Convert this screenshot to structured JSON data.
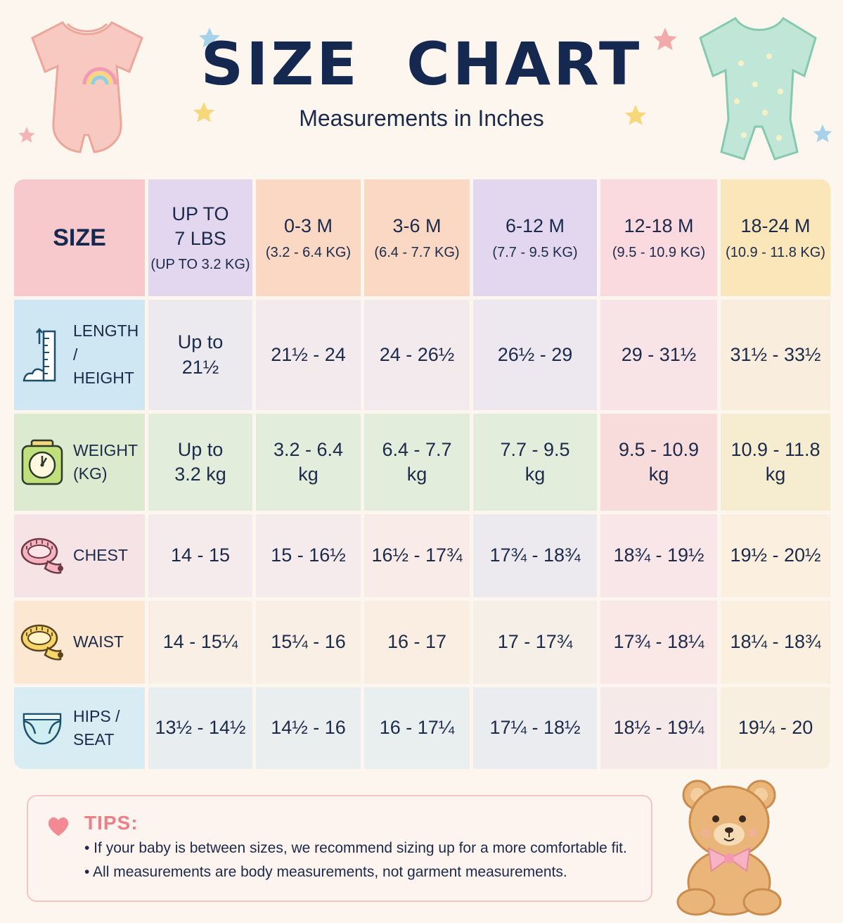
{
  "header": {
    "title": "SIZE  CHART",
    "subtitle": "Measurements in Inches"
  },
  "table": {
    "corner_label": "SIZE",
    "columns": [
      {
        "main": "UP TO\n7 LBS",
        "sub": "(UP TO 3.2 KG)",
        "color": "#e3d6ef"
      },
      {
        "main": "0-3 M",
        "sub": "(3.2 - 6.4 KG)",
        "color": "#fad8c4"
      },
      {
        "main": "3-6 M",
        "sub": "(6.4 - 7.7 KG)",
        "color": "#fad8c4"
      },
      {
        "main": "6-12 M",
        "sub": "(7.7 - 9.5 KG)",
        "color": "#e3d6ef"
      },
      {
        "main": "12-18 M",
        "sub": "(9.5 - 10.9 KG)",
        "color": "#fadade"
      },
      {
        "main": "18-24 M",
        "sub": "(10.9 - 11.8 KG)",
        "color": "#fbe6b9"
      }
    ],
    "rows": [
      {
        "label": "LENGTH /\nHEIGHT",
        "icon": "height-ruler-icon",
        "label_color": "#cfe6f3",
        "values": [
          "Up to\n21½",
          "21½ - 24",
          "24 - 26½",
          "26½ - 29",
          "29 - 31½",
          "31½ - 33½"
        ],
        "colors": [
          "#ece9ef",
          "#f2eaed",
          "#f2eaed",
          "#ede7f0",
          "#f8e4e6",
          "#f9eedd"
        ]
      },
      {
        "label": "WEIGHT\n(KG)",
        "icon": "scale-icon",
        "label_color": "#dcebcf",
        "values": [
          "Up to\n3.2 kg",
          "3.2 - 6.4\nkg",
          "6.4 - 7.7\nkg",
          "7.7 - 9.5\nkg",
          "9.5 - 10.9\nkg",
          "10.9 - 11.8\nkg"
        ],
        "colors": [
          "#e3eddc",
          "#e3eddc",
          "#e3eddc",
          "#e3eddc",
          "#f8dcdc",
          "#f6edd0"
        ]
      },
      {
        "label": "CHEST",
        "icon": "tape-measure-icon",
        "label_color": "#f5e3e6",
        "values": [
          "14 - 15",
          "15 - 16½",
          "16½ - 17¾",
          "17¾ - 18¾",
          "18¾ - 19½",
          "19½ - 20½"
        ],
        "colors": [
          "#f6ebec",
          "#f6ebec",
          "#f8ebe8",
          "#eceaef",
          "#f8e6e8",
          "#fbf0e0"
        ]
      },
      {
        "label": "WAIST",
        "icon": "tape-measure-icon",
        "label_color": "#fbe7d2",
        "values": [
          "14 - 15¼",
          "15¼ - 16",
          "16 - 17",
          "17 - 17¾",
          "17¾ - 18¼",
          "18¼ - 18¾"
        ],
        "colors": [
          "#f9efe4",
          "#f9efe4",
          "#faeee2",
          "#f5efe8",
          "#f9e8e6",
          "#fbf0df"
        ]
      },
      {
        "label": "HIPS /\nSEAT",
        "icon": "diaper-icon",
        "label_color": "#d8ecf3",
        "values": [
          "13½ - 14½",
          "14½ - 16",
          "16 - 17¼",
          "17¼ - 18½",
          "18½ - 19¼",
          "19¼ - 20"
        ],
        "colors": [
          "#e8eef0",
          "#ebeeef",
          "#e9eeef",
          "#ebecef",
          "#f5e9ea",
          "#f8efe1"
        ]
      }
    ]
  },
  "tips": {
    "title": "TIPS:",
    "items": [
      "• If your baby is between sizes, we recommend sizing up for a more comfortable fit.",
      "• All measurements are body measurements, not garment measurements."
    ]
  },
  "decorations": {
    "left_garment": "pink-bodysuit-rainbow-icon",
    "right_garment": "mint-romper-stars-icon",
    "bear": "teddy-bear-icon",
    "stars": "star-icon"
  },
  "colors": {
    "title": "#142850",
    "size_header": "#f7c8cc",
    "tips_accent": "#ee7f86"
  }
}
